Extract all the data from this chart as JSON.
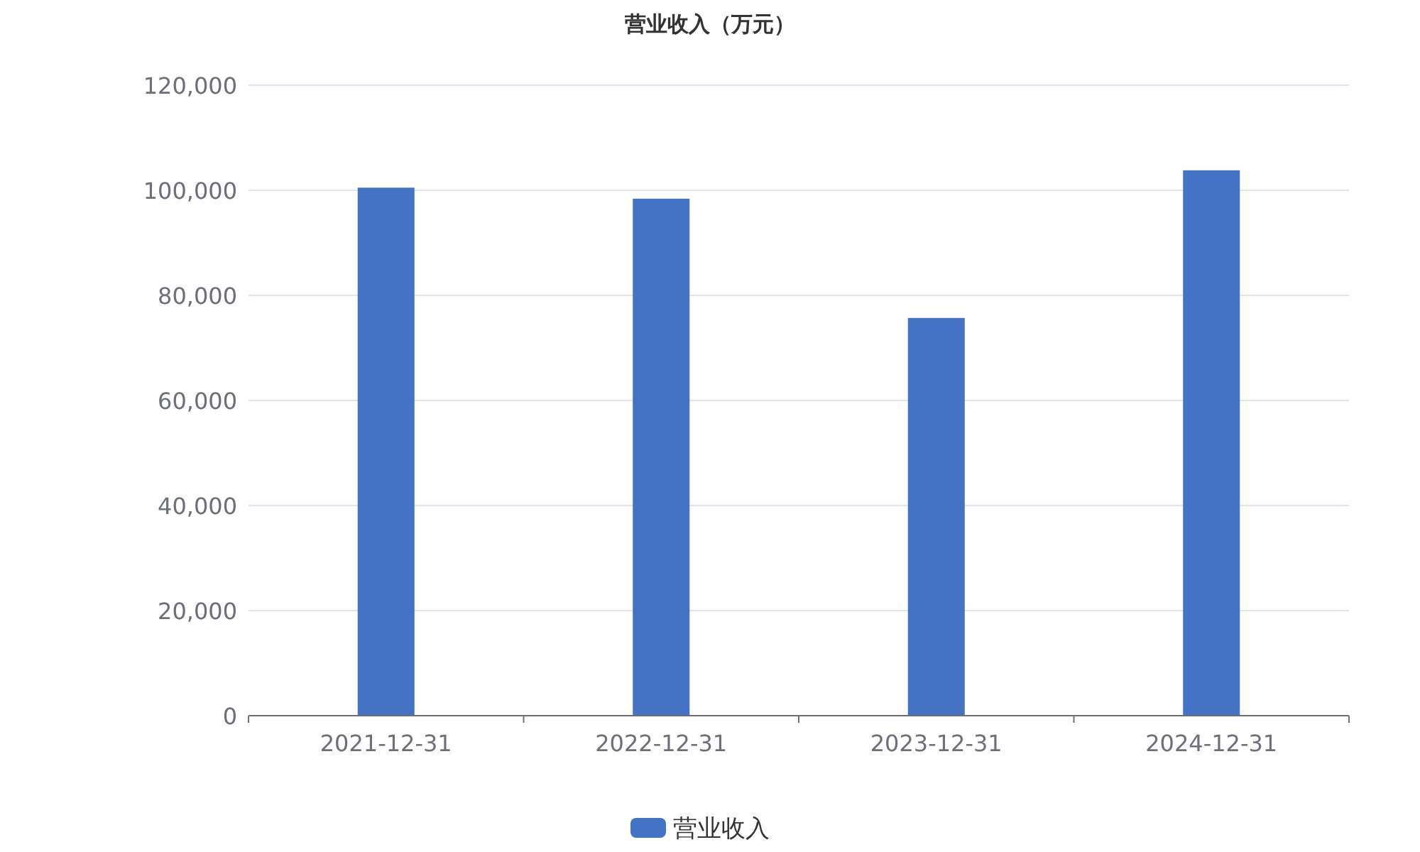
{
  "chart_data": {
    "type": "bar",
    "title": "营业收入（万元）",
    "categories": [
      "2021-12-31",
      "2022-12-31",
      "2023-12-31",
      "2024-12-31"
    ],
    "series": [
      {
        "name": "营业收入",
        "color": "#4472c4",
        "values": [
          100500,
          98400,
          75700,
          103800
        ]
      }
    ],
    "ylim": [
      0,
      120000
    ],
    "yticks": [
      0,
      {
        "value": 20000,
        "label": "20,000"
      },
      {
        "value": 40000,
        "label": "40,000"
      },
      {
        "value": 60000,
        "label": "60,000"
      },
      {
        "value": 80000,
        "label": "80,000"
      },
      {
        "value": 100000,
        "label": "100,000"
      },
      {
        "value": 120000,
        "label": "120,000"
      }
    ],
    "grid": "y",
    "legend": "bottom"
  }
}
